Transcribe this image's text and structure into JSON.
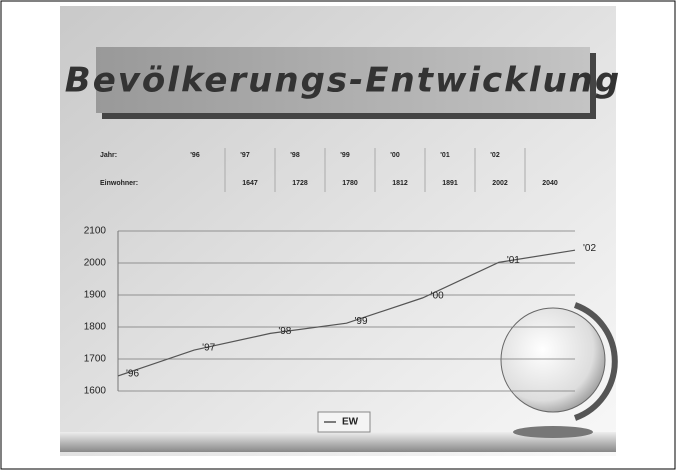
{
  "chart_data": {
    "type": "line",
    "title": "Bevölkerungs-Entwicklung",
    "table_labels": [
      "Jahr:",
      "Einwohner:"
    ],
    "categories": [
      "'96",
      "'97",
      "'98",
      "'99",
      "'00",
      "'01",
      "'02"
    ],
    "series": [
      {
        "name": "EW",
        "color": "#555555",
        "values": [
          1647,
          1728,
          1780,
          1812,
          1891,
          2002,
          2040
        ]
      }
    ],
    "ylim": [
      1600,
      2100
    ],
    "yticks": [
      1600,
      1700,
      1800,
      1900,
      2000,
      2100
    ],
    "grid": true
  }
}
